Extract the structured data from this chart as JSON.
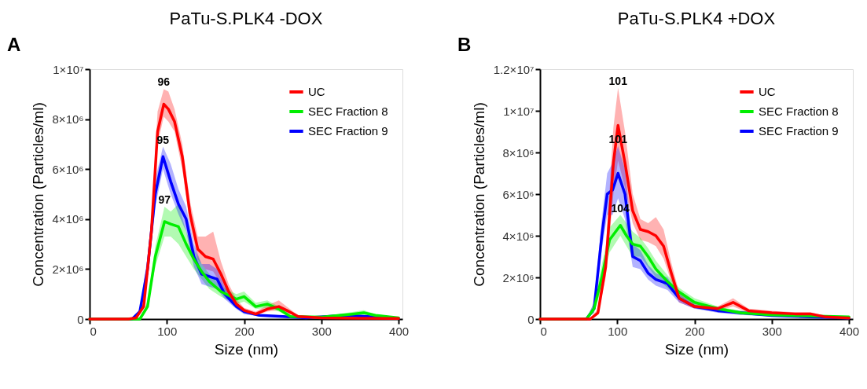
{
  "chart_data": [
    {
      "type": "line",
      "title": "PaTu-S.PLK4 -DOX",
      "xlabel": "Size (nm)",
      "ylabel": "Concentration (Particles/ml)",
      "xlim": [
        0,
        405
      ],
      "xticks": [
        0,
        100,
        200,
        300,
        400
      ],
      "ylim": [
        0,
        10000000.0
      ],
      "yticks": [
        0,
        {
          "value": 2000000.0,
          "label": "2×10⁶"
        },
        {
          "value": 4000000.0,
          "label": "4×10⁶"
        },
        {
          "value": 6000000.0,
          "label": "6×10⁶"
        },
        {
          "value": 8000000.0,
          "label": "8×10⁶"
        },
        {
          "value": 10000000.0,
          "label": "1×10⁷"
        }
      ],
      "grid": false,
      "legend": "top right",
      "marker": "none",
      "line_style": "solid",
      "annotations": [
        "A",
        {
          "text": "96",
          "x": 96,
          "y": 9200000.0
        },
        {
          "text": "95",
          "x": 95,
          "y": 6900000.0
        },
        {
          "text": "97",
          "x": 97,
          "y": 4500000.0
        }
      ],
      "series": [
        {
          "name": "UC",
          "color": "#ff0000",
          "x": [
            0,
            50,
            60,
            70,
            80,
            88,
            96,
            102,
            110,
            120,
            130,
            140,
            150,
            160,
            170,
            180,
            190,
            200,
            215,
            230,
            245,
            255,
            270,
            300,
            350,
            400
          ],
          "values": [
            0,
            0,
            50000.0,
            500000.0,
            3500000.0,
            7500000.0,
            8600000.0,
            8400000.0,
            7900000.0,
            6500000.0,
            4200000.0,
            2800000.0,
            2500000.0,
            2400000.0,
            1800000.0,
            1100000.0,
            600000.0,
            350000.0,
            200000.0,
            400000.0,
            500000.0,
            350000.0,
            100000.0,
            50000.0,
            30000.0,
            20000.0
          ],
          "lower": [
            0,
            0,
            30000.0,
            400000.0,
            3000000.0,
            7000000.0,
            8100000.0,
            7900000.0,
            7500000.0,
            6000000.0,
            3800000.0,
            2400000.0,
            2000000.0,
            1900000.0,
            1400000.0,
            900000.0,
            500000.0,
            300000.0,
            150000.0,
            300000.0,
            350000.0,
            250000.0,
            80000.0,
            30000.0,
            20000.0,
            10000.0
          ],
          "upper": [
            0,
            0,
            80000.0,
            700000.0,
            4000000.0,
            8300000.0,
            9200000.0,
            9100000.0,
            8400000.0,
            7000000.0,
            4700000.0,
            3300000.0,
            3300000.0,
            3500000.0,
            2300000.0,
            1400000.0,
            800000.0,
            450000.0,
            300000.0,
            550000.0,
            750000.0,
            500000.0,
            150000.0,
            80000.0,
            50000.0,
            30000.0
          ]
        },
        {
          "name": "SEC Fraction 8",
          "color": "#00ee00",
          "x": [
            0,
            65,
            75,
            85,
            97,
            105,
            115,
            125,
            135,
            145,
            155,
            170,
            190,
            200,
            215,
            230,
            245,
            260,
            300,
            340,
            355,
            370,
            400
          ],
          "values": [
            0,
            0,
            500000.0,
            2500000.0,
            3900000.0,
            3800000.0,
            3700000.0,
            3000000.0,
            2400000.0,
            1900000.0,
            1500000.0,
            1100000.0,
            800000.0,
            900000.0,
            500000.0,
            600000.0,
            400000.0,
            100000.0,
            80000.0,
            200000.0,
            250000.0,
            150000.0,
            50000.0
          ],
          "lower": [
            0,
            0,
            400000.0,
            2100000.0,
            3300000.0,
            3300000.0,
            3000000.0,
            2500000.0,
            2000000.0,
            1600000.0,
            1200000.0,
            900000.0,
            600000.0,
            700000.0,
            400000.0,
            450000.0,
            300000.0,
            70000.0,
            50000.0,
            150000.0,
            180000.0,
            100000.0,
            30000.0
          ],
          "upper": [
            0,
            0,
            700000.0,
            2900000.0,
            4500000.0,
            4300000.0,
            4600000.0,
            3500000.0,
            2800000.0,
            2200000.0,
            1800000.0,
            1300000.0,
            1000000.0,
            1100000.0,
            650000.0,
            750000.0,
            500000.0,
            150000.0,
            100000.0,
            280000.0,
            350000.0,
            200000.0,
            80000.0
          ]
        },
        {
          "name": "SEC Fraction 9",
          "color": "#0000ff",
          "x": [
            0,
            55,
            65,
            75,
            85,
            95,
            105,
            115,
            125,
            135,
            145,
            155,
            165,
            175,
            190,
            200,
            220,
            250,
            280,
            330,
            360,
            400
          ],
          "values": [
            0,
            0,
            300000.0,
            2000000.0,
            5000000.0,
            6500000.0,
            5500000.0,
            4600000.0,
            4000000.0,
            2500000.0,
            1800000.0,
            1700000.0,
            1600000.0,
            1000000.0,
            500000.0,
            300000.0,
            150000.0,
            100000.0,
            50000.0,
            150000.0,
            100000.0,
            20000.0
          ],
          "lower": [
            0,
            0,
            200000.0,
            1600000.0,
            4500000.0,
            6000000.0,
            5000000.0,
            4200000.0,
            3500000.0,
            2100000.0,
            1400000.0,
            1300000.0,
            1200000.0,
            800000.0,
            400000.0,
            200000.0,
            100000.0,
            70000.0,
            30000.0,
            100000.0,
            70000.0,
            10000.0
          ],
          "upper": [
            0,
            0,
            400000.0,
            2500000.0,
            5600000.0,
            6900000.0,
            6200000.0,
            5200000.0,
            4500000.0,
            3000000.0,
            2200000.0,
            2200000.0,
            2000000.0,
            1300000.0,
            650000.0,
            400000.0,
            200000.0,
            150000.0,
            80000.0,
            200000.0,
            140000.0,
            40000.0
          ]
        }
      ]
    },
    {
      "type": "line",
      "title": "PaTu-S.PLK4 +DOX",
      "xlabel": "Size (nm)",
      "ylabel": "Concentration (Particles/ml)",
      "xlim": [
        0,
        405
      ],
      "xticks": [
        0,
        100,
        200,
        300,
        400
      ],
      "ylim": [
        0,
        12000000.0
      ],
      "yticks": [
        0,
        {
          "value": 2000000.0,
          "label": "2×10⁶"
        },
        {
          "value": 4000000.0,
          "label": "4×10⁶"
        },
        {
          "value": 6000000.0,
          "label": "6×10⁶"
        },
        {
          "value": 8000000.0,
          "label": "8×10⁶"
        },
        {
          "value": 10000000.0,
          "label": "1×10⁷"
        },
        {
          "value": 12000000.0,
          "label": "1.2×10⁷"
        }
      ],
      "grid": false,
      "legend": "top right",
      "marker": "none",
      "line_style": "solid",
      "annotations": [
        "B",
        {
          "text": "101",
          "x": 101,
          "y": 11100000.0
        },
        {
          "text": "101",
          "x": 101,
          "y": 8300000.0
        },
        {
          "text": "104",
          "x": 104,
          "y": 5000000.0
        }
      ],
      "series": [
        {
          "name": "UC",
          "color": "#ff0000",
          "x": [
            0,
            65,
            75,
            85,
            95,
            101,
            110,
            120,
            130,
            140,
            150,
            160,
            170,
            180,
            200,
            230,
            250,
            270,
            300,
            330,
            350,
            370,
            400
          ],
          "values": [
            0,
            0,
            300000.0,
            2500000.0,
            7500000.0,
            9300000.0,
            7500000.0,
            5200000.0,
            4300000.0,
            4200000.0,
            4000000.0,
            3500000.0,
            2200000.0,
            1000000.0,
            600000.0,
            500000.0,
            800000.0,
            400000.0,
            300000.0,
            250000.0,
            250000.0,
            100000.0,
            50000.0
          ],
          "lower": [
            0,
            0,
            200000.0,
            2000000.0,
            6000000.0,
            7600000.0,
            6300000.0,
            4600000.0,
            3800000.0,
            3700000.0,
            3500000.0,
            2900000.0,
            1800000.0,
            800000.0,
            500000.0,
            400000.0,
            600000.0,
            300000.0,
            200000.0,
            180000.0,
            180000.0,
            70000.0,
            30000.0
          ],
          "upper": [
            0,
            0,
            500000.0,
            3200000.0,
            9200000.0,
            11100000.0,
            9000000.0,
            6000000.0,
            4800000.0,
            4600000.0,
            4900000.0,
            4300000.0,
            2700000.0,
            1300000.0,
            750000.0,
            600000.0,
            1000000.0,
            500000.0,
            400000.0,
            330000.0,
            330000.0,
            150000.0,
            80000.0
          ]
        },
        {
          "name": "SEC Fraction 8",
          "color": "#00ee00",
          "x": [
            0,
            60,
            70,
            80,
            90,
            104,
            112,
            120,
            130,
            140,
            150,
            165,
            180,
            200,
            230,
            260,
            300,
            350,
            400
          ],
          "values": [
            0,
            0,
            500000.0,
            2000000.0,
            3800000.0,
            4500000.0,
            4000000.0,
            3600000.0,
            3500000.0,
            3000000.0,
            2400000.0,
            1800000.0,
            1300000.0,
            800000.0,
            500000.0,
            300000.0,
            200000.0,
            150000.0,
            100000.0
          ],
          "lower": [
            0,
            0,
            300000.0,
            1500000.0,
            3200000.0,
            4000000.0,
            3500000.0,
            3000000.0,
            3000000.0,
            2500000.0,
            2000000.0,
            1500000.0,
            1000000.0,
            600000.0,
            400000.0,
            200000.0,
            150000.0,
            100000.0,
            70000.0
          ],
          "upper": [
            0,
            0,
            800000.0,
            2600000.0,
            4400000.0,
            5000000.0,
            4600000.0,
            4200000.0,
            3900000.0,
            3400000.0,
            2800000.0,
            2100000.0,
            1500000.0,
            1000000.0,
            600000.0,
            400000.0,
            280000.0,
            200000.0,
            140000.0
          ]
        },
        {
          "name": "SEC Fraction 9",
          "color": "#0000ff",
          "x": [
            0,
            60,
            70,
            80,
            87,
            94,
            101,
            110,
            120,
            130,
            140,
            150,
            165,
            180,
            200,
            230,
            260,
            300,
            350,
            400
          ],
          "values": [
            0,
            0,
            500000.0,
            4000000.0,
            6000000.0,
            6200000.0,
            7000000.0,
            6000000.0,
            3000000.0,
            2800000.0,
            2200000.0,
            1900000.0,
            1700000.0,
            1000000.0,
            600000.0,
            400000.0,
            300000.0,
            170000.0,
            100000.0,
            50000.0
          ],
          "lower": [
            0,
            0,
            300000.0,
            3300000.0,
            5000000.0,
            5000000.0,
            5800000.0,
            4800000.0,
            2500000.0,
            2400000.0,
            1900000.0,
            1600000.0,
            1400000.0,
            800000.0,
            500000.0,
            300000.0,
            200000.0,
            130000.0,
            70000.0,
            30000.0
          ],
          "upper": [
            0,
            0,
            800000.0,
            4800000.0,
            7000000.0,
            7500000.0,
            8300000.0,
            7200000.0,
            3600000.0,
            3300000.0,
            2600000.0,
            2200000.0,
            2000000.0,
            1200000.0,
            700000.0,
            500000.0,
            400000.0,
            250000.0,
            200000.0,
            140000.0
          ]
        }
      ]
    }
  ]
}
